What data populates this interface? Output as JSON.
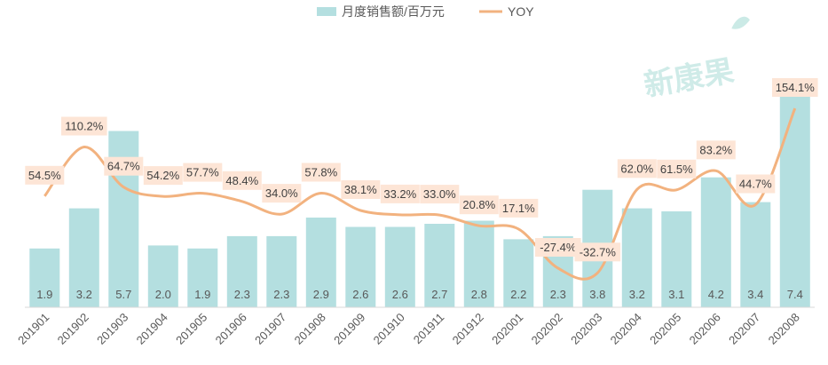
{
  "chart_data": {
    "type": "bar+line",
    "categories": [
      "201901",
      "201902",
      "201903",
      "201904",
      "201905",
      "201906",
      "201907",
      "201908",
      "201909",
      "201910",
      "201911",
      "201912",
      "202001",
      "202002",
      "202003",
      "202004",
      "202005",
      "202006",
      "202007",
      "202008"
    ],
    "series": [
      {
        "name": "月度销售额/百万元",
        "type": "bar",
        "color": "#b4dfe0",
        "values": [
          1.9,
          3.2,
          5.7,
          2.0,
          1.9,
          2.3,
          2.3,
          2.9,
          2.6,
          2.6,
          2.7,
          2.8,
          2.2,
          2.3,
          3.8,
          3.2,
          3.1,
          4.2,
          3.4,
          7.4
        ],
        "labels": [
          "1.9",
          "3.2",
          "5.7",
          "2.0",
          "1.9",
          "2.3",
          "2.3",
          "2.9",
          "2.6",
          "2.6",
          "2.7",
          "2.8",
          "2.2",
          "2.3",
          "3.8",
          "3.2",
          "3.1",
          "4.2",
          "3.4",
          "7.4"
        ]
      },
      {
        "name": "YOY",
        "type": "line",
        "color": "#f2b27f",
        "values": [
          54.5,
          110.2,
          64.7,
          54.2,
          57.7,
          48.4,
          34.0,
          57.8,
          38.1,
          33.2,
          33.0,
          20.8,
          17.1,
          -27.4,
          -32.7,
          62.0,
          61.5,
          83.2,
          44.7,
          154.1
        ],
        "labels": [
          "54.5%",
          "110.2%",
          "64.7%",
          "54.2%",
          "57.7%",
          "48.4%",
          "34.0%",
          "57.8%",
          "38.1%",
          "33.2%",
          "33.0%",
          "20.8%",
          "17.1%",
          "-27.4%",
          "-32.7%",
          "62.0%",
          "61.5%",
          "83.2%",
          "44.7%",
          "154.1%"
        ]
      }
    ],
    "legend_position": "top-center",
    "grid": false,
    "label_box_color": "#fde5d6"
  },
  "watermark": {
    "text": "新康果"
  }
}
